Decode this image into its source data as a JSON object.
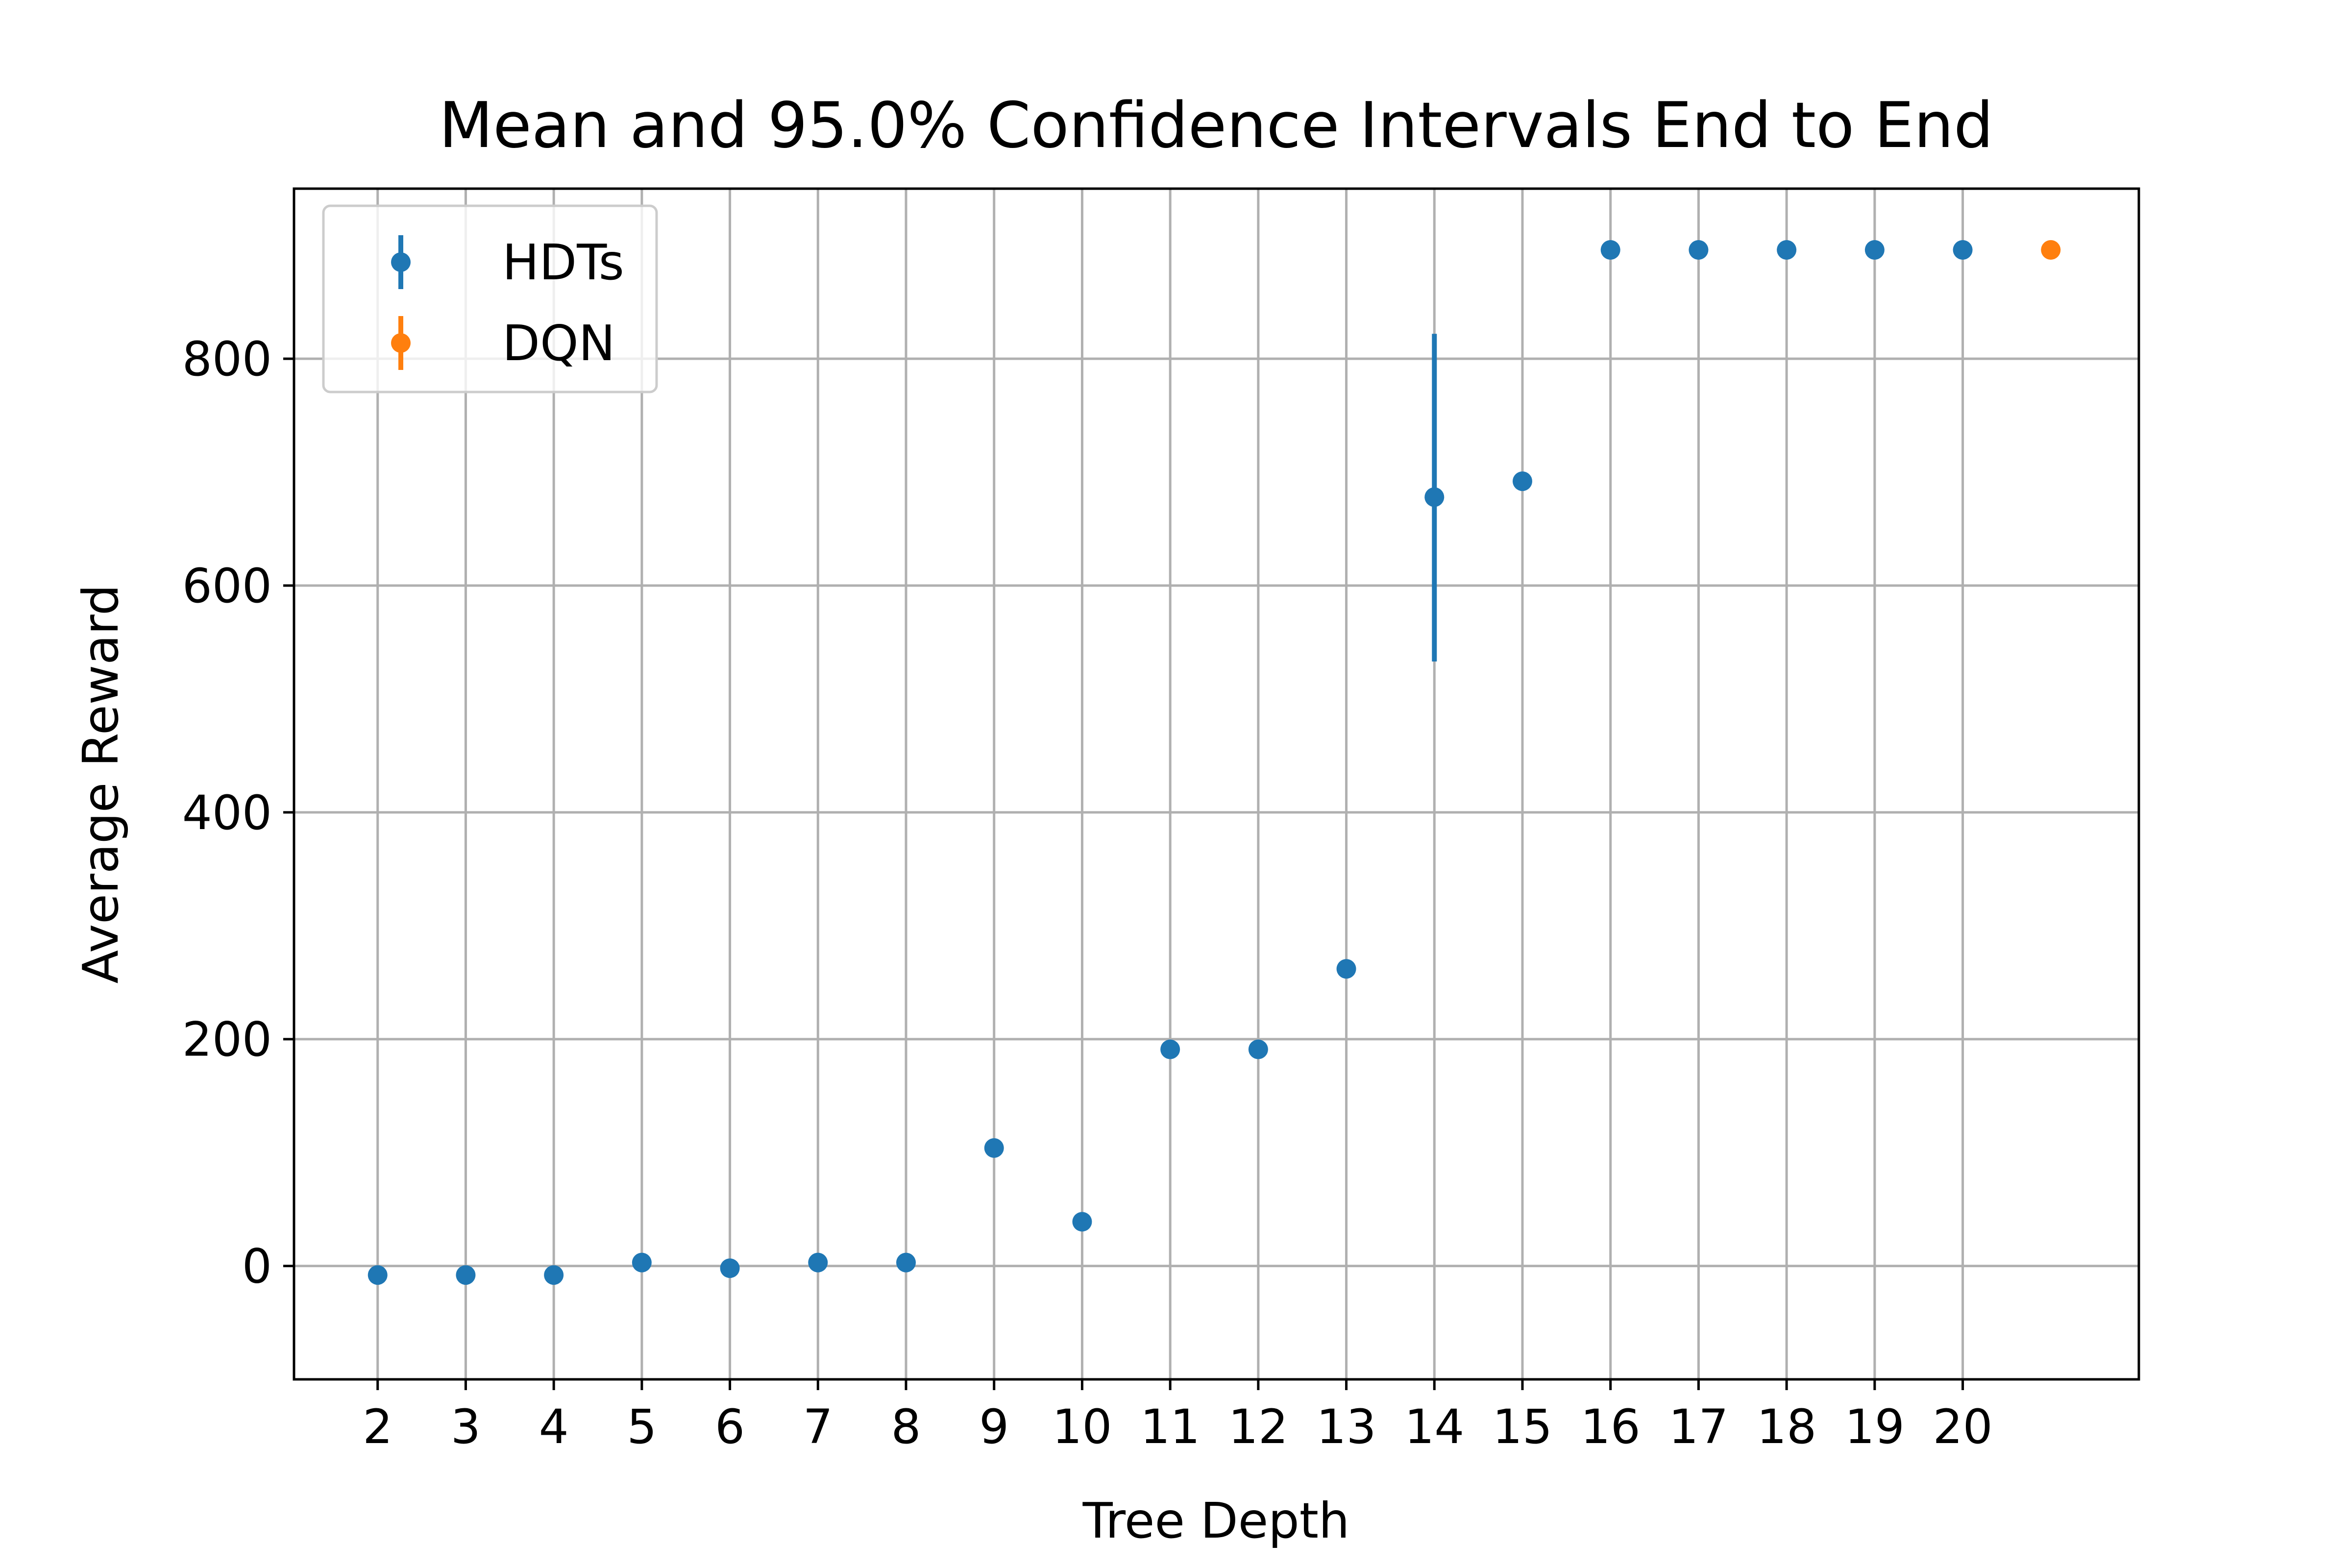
{
  "chart_data": {
    "type": "scatter",
    "title": "Mean and 95.0% Confidence Intervals End to End",
    "xlabel": "Tree Depth",
    "ylabel": "Average Reward",
    "xlim": [
      1.05,
      22.0
    ],
    "ylim": [
      -100,
      950
    ],
    "xticks": [
      2,
      3,
      4,
      5,
      6,
      7,
      8,
      9,
      10,
      11,
      12,
      13,
      14,
      15,
      16,
      17,
      18,
      19,
      20
    ],
    "yticks": [
      0,
      200,
      400,
      600,
      800
    ],
    "grid": true,
    "legend_position": "top-left",
    "series": [
      {
        "name": "HDTs",
        "color": "#1f77b4",
        "points": [
          {
            "x": 2,
            "y": -8
          },
          {
            "x": 3,
            "y": -8
          },
          {
            "x": 4,
            "y": -8
          },
          {
            "x": 5,
            "y": 3
          },
          {
            "x": 6,
            "y": -2
          },
          {
            "x": 7,
            "y": 3
          },
          {
            "x": 8,
            "y": 3
          },
          {
            "x": 9,
            "y": 104
          },
          {
            "x": 10,
            "y": 39
          },
          {
            "x": 11,
            "y": 191
          },
          {
            "x": 12,
            "y": 191
          },
          {
            "x": 13,
            "y": 262
          },
          {
            "x": 14,
            "y": 678,
            "err_low": 533,
            "err_high": 822
          },
          {
            "x": 15,
            "y": 692
          },
          {
            "x": 16,
            "y": 896
          },
          {
            "x": 17,
            "y": 896
          },
          {
            "x": 18,
            "y": 896
          },
          {
            "x": 19,
            "y": 896
          },
          {
            "x": 20,
            "y": 896
          }
        ]
      },
      {
        "name": "DQN",
        "color": "#ff7f0e",
        "points": [
          {
            "x": 21,
            "y": 896
          }
        ]
      }
    ]
  }
}
